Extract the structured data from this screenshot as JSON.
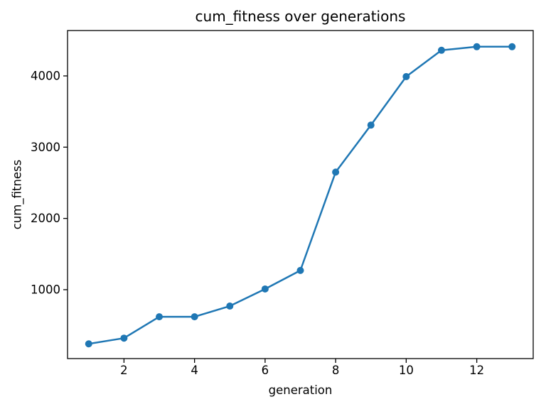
{
  "figure": {
    "background": "#ffffff",
    "text_color": "#000000"
  },
  "chart_data": {
    "type": "line",
    "title": "cum_fitness over generations",
    "xlabel": "generation",
    "ylabel": "cum_fitness",
    "x": [
      1,
      2,
      3,
      4,
      5,
      6,
      7,
      8,
      9,
      10,
      11,
      12,
      13
    ],
    "y": [
      240,
      320,
      620,
      620,
      770,
      1010,
      1270,
      2650,
      3310,
      3990,
      4360,
      4410,
      4410
    ],
    "series_name": "cum_fitness",
    "xticks": [
      2,
      4,
      6,
      8,
      10,
      12
    ],
    "yticks": [
      1000,
      2000,
      3000,
      4000
    ],
    "xlim": [
      0.4,
      13.6
    ],
    "ylim": [
      33,
      4637
    ],
    "line_color": "#1f77b4",
    "marker": "o",
    "marker_size": 5,
    "line_width": 2.5,
    "grid": false,
    "legend": null
  }
}
